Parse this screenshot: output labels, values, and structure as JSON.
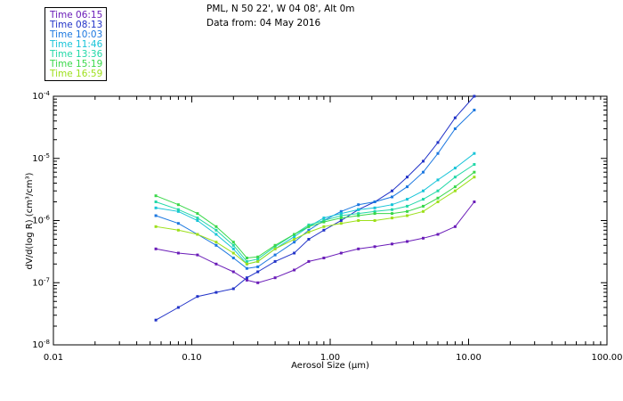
{
  "header": {
    "line1": "PML, N 50 22', W 04 08', Alt 0m",
    "line2": "Data from: 04 May 2016"
  },
  "legend": {
    "items": [
      {
        "label": "Time 06:15",
        "color": "#6a1cb8"
      },
      {
        "label": "Time 08:13",
        "color": "#2233c8"
      },
      {
        "label": "Time 10:03",
        "color": "#1c78e0"
      },
      {
        "label": "Time 11:46",
        "color": "#18c4d8"
      },
      {
        "label": "Time 13:36",
        "color": "#22d8a8"
      },
      {
        "label": "Time 15:19",
        "color": "#3ad84a"
      },
      {
        "label": "Time 16:59",
        "color": "#9ee01c"
      }
    ]
  },
  "chart_data": {
    "type": "line",
    "xscale": "log",
    "yscale": "log",
    "xlim": [
      0.01,
      100
    ],
    "ylim": [
      1e-08,
      0.0001
    ],
    "xlabel": "Aerosol Size (µm)",
    "ylabel": "dV/d(log R) (cm³/cm³)",
    "x_tick_labels": [
      "0.01",
      "0.10",
      "1.00",
      "10.00",
      "100.00"
    ],
    "y_tick_labels": [
      {
        "mantissa": "10",
        "exp": "-4"
      },
      {
        "mantissa": "10",
        "exp": "-5"
      },
      {
        "mantissa": "10",
        "exp": "-6"
      },
      {
        "mantissa": "10",
        "exp": "-7"
      },
      {
        "mantissa": "10",
        "exp": "-8"
      }
    ],
    "x": [
      0.055,
      0.08,
      0.11,
      0.15,
      0.2,
      0.25,
      0.3,
      0.4,
      0.55,
      0.7,
      0.9,
      1.2,
      1.6,
      2.1,
      2.8,
      3.6,
      4.7,
      6.0,
      8.0,
      11.0
    ],
    "series": [
      {
        "name": "06:15",
        "color": "#6a1cb8",
        "values": [
          3.5e-07,
          3e-07,
          2.8e-07,
          2e-07,
          1.5e-07,
          1.1e-07,
          1e-07,
          1.2e-07,
          1.6e-07,
          2.2e-07,
          2.5e-07,
          3e-07,
          3.5e-07,
          3.8e-07,
          4.2e-07,
          4.6e-07,
          5.2e-07,
          6e-07,
          8e-07,
          2e-06
        ]
      },
      {
        "name": "08:13",
        "color": "#2233c8",
        "values": [
          2.5e-08,
          4e-08,
          6e-08,
          7e-08,
          8e-08,
          1.2e-07,
          1.5e-07,
          2.2e-07,
          3e-07,
          5e-07,
          7e-07,
          1e-06,
          1.5e-06,
          2e-06,
          3e-06,
          5e-06,
          9e-06,
          1.8e-05,
          4.5e-05,
          0.0001
        ]
      },
      {
        "name": "10:03",
        "color": "#1c78e0",
        "values": [
          1.2e-06,
          9e-07,
          6e-07,
          4e-07,
          2.5e-07,
          1.7e-07,
          1.8e-07,
          2.8e-07,
          4.5e-07,
          7e-07,
          1e-06,
          1.4e-06,
          1.8e-06,
          2e-06,
          2.4e-06,
          3.5e-06,
          6e-06,
          1.2e-05,
          3e-05,
          6e-05
        ]
      },
      {
        "name": "11:46",
        "color": "#18c4d8",
        "values": [
          1.6e-06,
          1.4e-06,
          1e-06,
          6e-07,
          3.5e-07,
          2e-07,
          2.2e-07,
          3.5e-07,
          5.5e-07,
          8e-07,
          1.1e-06,
          1.3e-06,
          1.5e-06,
          1.6e-06,
          1.8e-06,
          2.2e-06,
          3e-06,
          4.5e-06,
          7e-06,
          1.2e-05
        ]
      },
      {
        "name": "13:36",
        "color": "#22d8a8",
        "values": [
          2e-06,
          1.5e-06,
          1.1e-06,
          7e-07,
          4e-07,
          2.2e-07,
          2.4e-07,
          3.8e-07,
          6e-07,
          8.5e-07,
          1e-06,
          1.2e-06,
          1.3e-06,
          1.4e-06,
          1.5e-06,
          1.7e-06,
          2.2e-06,
          3e-06,
          5e-06,
          8e-06
        ]
      },
      {
        "name": "15:19",
        "color": "#3ad84a",
        "values": [
          2.5e-06,
          1.8e-06,
          1.3e-06,
          8e-07,
          4.5e-07,
          2.5e-07,
          2.6e-07,
          4e-07,
          6e-07,
          8e-07,
          9.5e-07,
          1.1e-06,
          1.2e-06,
          1.3e-06,
          1.3e-06,
          1.4e-06,
          1.7e-06,
          2.3e-06,
          3.5e-06,
          6e-06
        ]
      },
      {
        "name": "16:59",
        "color": "#9ee01c",
        "values": [
          8e-07,
          7e-07,
          6e-07,
          4.5e-07,
          3e-07,
          2e-07,
          2.2e-07,
          3.5e-07,
          5e-07,
          6.5e-07,
          8e-07,
          9e-07,
          1e-06,
          1e-06,
          1.1e-06,
          1.2e-06,
          1.4e-06,
          2e-06,
          3e-06,
          5e-06
        ]
      }
    ]
  }
}
